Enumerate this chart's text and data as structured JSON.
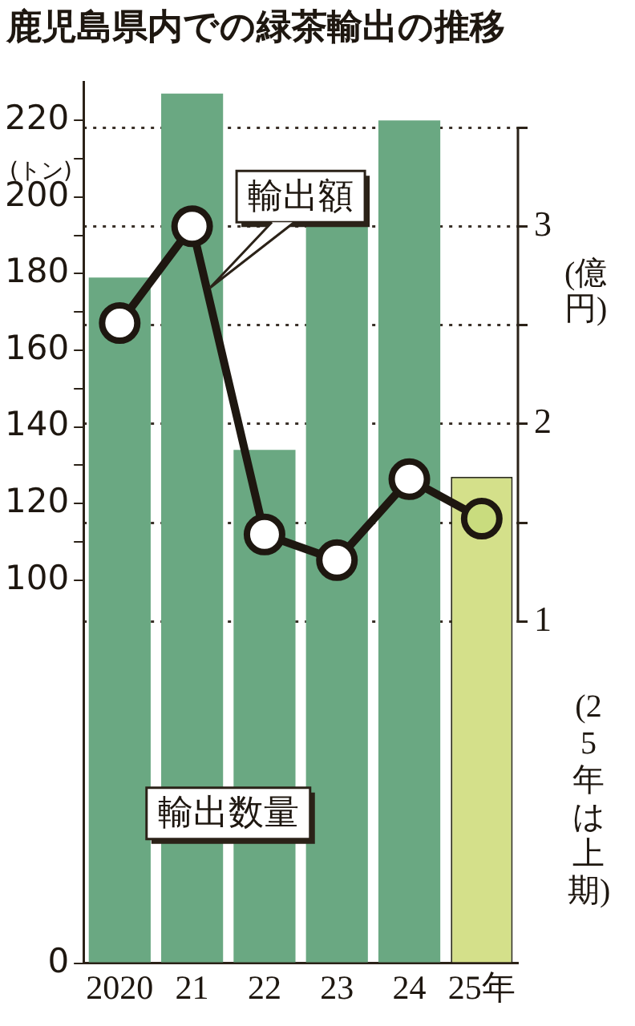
{
  "chart_data": {
    "type": "bar",
    "title": "鹿児島県内での緑茶輸出の推移",
    "categories": [
      "2020",
      "21",
      "22",
      "23",
      "24",
      "25年"
    ],
    "ylabel": "(トン)",
    "y2label": "(億円)",
    "series": [
      {
        "name": "輸出数量",
        "color": "#6aa882",
        "colors": [
          "#6aa882",
          "#6aa882",
          "#6aa882",
          "#6aa882",
          "#6aa882",
          "#d4e08a"
        ],
        "values": [
          179,
          227,
          134,
          193,
          220,
          127
        ]
      },
      {
        "name": "輸出額",
        "type": "line",
        "axis": "y2",
        "color": "#1e1710",
        "colors": [
          "#ffffff",
          "#ffffff",
          "#ffffff",
          "#ffffff",
          "#ffffff",
          "#c9dc7e"
        ],
        "values": [
          2.51,
          3.0,
          1.44,
          1.31,
          1.72,
          1.52
        ]
      }
    ],
    "ylim": [
      0,
      230
    ],
    "yticks": [
      0,
      100,
      {
        "value": 110,
        "label": null
      },
      120,
      {
        "value": 130,
        "label": null
      },
      140,
      {
        "value": 150,
        "label": null
      },
      160,
      {
        "value": 170,
        "label": null
      },
      180,
      {
        "value": 190,
        "label": null
      },
      200,
      {
        "value": 210,
        "label": null
      },
      220
    ],
    "y2lim": [
      -0.73,
      3.73
    ],
    "y2ticks": [
      1,
      {
        "value": 1.5,
        "label": null
      },
      2,
      {
        "value": 2.5,
        "label": null
      },
      3,
      {
        "value": 3.5,
        "label": null
      }
    ],
    "grid": "y2",
    "legend": false,
    "marker": "circle",
    "line_style": "solid",
    "annotations": [
      "(25年は上期)"
    ]
  }
}
